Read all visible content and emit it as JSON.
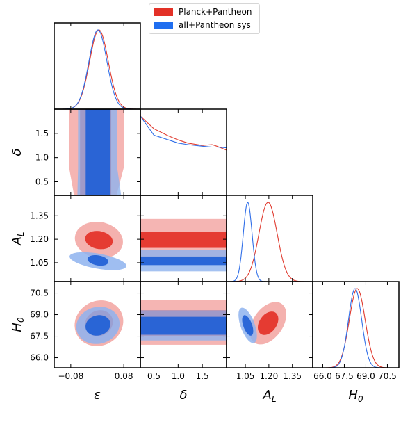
{
  "chart_data": {
    "type": "triangle-corner",
    "parameters": [
      {
        "key": "eps",
        "label": "ε",
        "range": [
          -0.13,
          0.13
        ],
        "ticks": [
          -0.08,
          0.08
        ],
        "tick_labels": [
          "−0.08",
          "0.08"
        ]
      },
      {
        "key": "delta",
        "label": "δ",
        "range": [
          0.22,
          2.0
        ],
        "ticks": [
          0.5,
          1.0,
          1.5
        ],
        "tick_labels": [
          "0.5",
          "1.0",
          "1.5"
        ]
      },
      {
        "key": "AL",
        "label": "A",
        "label_sub": "L",
        "range": [
          0.93,
          1.48
        ],
        "ticks": [
          1.05,
          1.2,
          1.35
        ],
        "tick_labels": [
          "1.05",
          "1.20",
          "1.35"
        ]
      },
      {
        "key": "H0",
        "label": "H",
        "label_sub": "0",
        "range": [
          65.3,
          71.3
        ],
        "ticks": [
          66.0,
          67.5,
          69.0,
          70.5
        ],
        "tick_labels": [
          "66.0",
          "67.5",
          "69.0",
          "70.5"
        ]
      }
    ],
    "series": [
      {
        "name": "Planck+Pantheon",
        "colors": {
          "line": "#e03a2e",
          "inner": "#e33127",
          "outer": "#f2a3a0"
        },
        "marginals": {
          "eps": {
            "mean": 0.005,
            "sigma": 0.028
          },
          "delta": {
            "x": [
              0.22,
              0.5,
              0.8,
              1.0,
              1.2,
              1.5,
              1.7,
              1.8,
              2.0
            ],
            "y": [
              1.0,
              0.84,
              0.75,
              0.7,
              0.66,
              0.63,
              0.64,
              0.62,
              0.57
            ]
          },
          "AL": {
            "mean": 1.195,
            "sigma": 0.058
          },
          "H0": {
            "mean": 68.4,
            "sigma": 0.55
          }
        },
        "contours": [
          {
            "pair": [
              "eps",
              "delta"
            ],
            "inner_x": [
              -0.052,
              0.042
            ],
            "outer_x": [
              -0.085,
              0.08
            ],
            "outer_bottom_x": [
              -0.07,
              0.058
            ]
          },
          {
            "pair": [
              "eps",
              "AL"
            ],
            "inner": {
              "cx": 0.005,
              "cy": 1.195,
              "rx": 0.042,
              "ry": 0.057,
              "rot": -10
            },
            "outer": {
              "cx": 0.005,
              "cy": 1.195,
              "rx": 0.073,
              "ry": 0.115,
              "rot": -10
            }
          },
          {
            "pair": [
              "delta",
              "AL"
            ],
            "inner_y": [
              1.145,
              1.245
            ],
            "outer_y": [
              1.075,
              1.33
            ]
          },
          {
            "pair": [
              "eps",
              "H0"
            ],
            "inner": {
              "cx": 0.005,
              "cy": 68.4,
              "rx": 0.043,
              "ry": 0.88,
              "rot": 28
            },
            "outer": {
              "cx": 0.005,
              "cy": 68.4,
              "rx": 0.075,
              "ry": 1.55,
              "rot": 28
            }
          },
          {
            "pair": [
              "delta",
              "H0"
            ],
            "inner_y": [
              67.5,
              69.3
            ],
            "outer_y": [
              66.9,
              70.0
            ]
          },
          {
            "pair": [
              "AL",
              "H0"
            ],
            "inner": {
              "cx": 1.195,
              "cy": 68.4,
              "rx": 0.055,
              "ry": 0.9,
              "rot": -35
            },
            "outer": {
              "cx": 1.195,
              "cy": 68.4,
              "rx": 0.095,
              "ry": 1.65,
              "rot": -35
            }
          }
        ]
      },
      {
        "name": "all+Pantheon sys",
        "colors": {
          "line": "#2f6ee8",
          "inner": "#1f5fd6",
          "outer": "#8eb3ee"
        },
        "marginals": {
          "eps": {
            "mean": 0.002,
            "sigma": 0.027
          },
          "delta": {
            "x": [
              0.22,
              0.5,
              0.8,
              1.0,
              1.2,
              1.5,
              1.7,
              1.8,
              2.0
            ],
            "y": [
              1.0,
              0.76,
              0.7,
              0.66,
              0.64,
              0.62,
              0.61,
              0.61,
              0.6
            ]
          },
          "AL": {
            "mean": 1.065,
            "sigma": 0.028
          },
          "H0": {
            "mean": 68.25,
            "sigma": 0.46
          }
        },
        "contours": [
          {
            "pair": [
              "eps",
              "delta"
            ],
            "inner_x": [
              -0.035,
              0.04
            ],
            "outer_x": [
              -0.058,
              0.06
            ],
            "outer_bottom_x": [
              -0.06,
              0.072
            ]
          },
          {
            "pair": [
              "eps",
              "AL"
            ],
            "inner": {
              "cx": 0.002,
              "cy": 1.065,
              "rx": 0.032,
              "ry": 0.032,
              "rot": -10
            },
            "outer": {
              "cx": 0.002,
              "cy": 1.06,
              "rx": 0.087,
              "ry": 0.048,
              "rot": -10
            }
          },
          {
            "pair": [
              "delta",
              "AL"
            ],
            "inner_y": [
              1.035,
              1.09
            ],
            "outer_y": [
              0.995,
              1.13
            ]
          },
          {
            "pair": [
              "eps",
              "H0"
            ],
            "inner": {
              "cx": 0.002,
              "cy": 68.25,
              "rx": 0.038,
              "ry": 0.7,
              "rot": 15
            },
            "outer": {
              "cx": 0.002,
              "cy": 68.25,
              "rx": 0.066,
              "ry": 1.28,
              "rot": 15
            }
          },
          {
            "pair": [
              "delta",
              "H0"
            ],
            "inner_y": [
              67.6,
              68.85
            ],
            "outer_y": [
              67.2,
              69.3
            ]
          },
          {
            "pair": [
              "AL",
              "H0"
            ],
            "inner": {
              "cx": 1.065,
              "cy": 68.25,
              "rx": 0.028,
              "ry": 0.75,
              "rot": 20
            },
            "outer": {
              "cx": 1.065,
              "cy": 68.25,
              "rx": 0.045,
              "ry": 1.3,
              "rot": 20
            }
          }
        ]
      }
    ],
    "legend": {
      "placement": "top-center",
      "entries": [
        "Planck+Pantheon",
        "all+Pantheon sys"
      ]
    },
    "grid": false
  }
}
